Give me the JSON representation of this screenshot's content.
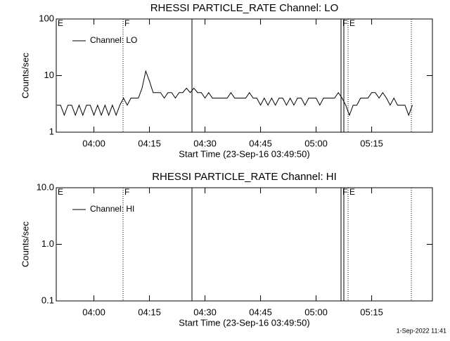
{
  "chart_data": [
    {
      "type": "line",
      "title": "RHESSI PARTICLE_RATE Channel: LO",
      "xlabel": "Start Time (23-Sep-16 03:49:50)",
      "ylabel": "Counts/sec",
      "log_y": true,
      "xlim": [
        229.833,
        331.41
      ],
      "ylim": [
        1,
        100
      ],
      "yticks": [
        1,
        10,
        100
      ],
      "xticks": [
        {
          "value": 240,
          "label": "04:00"
        },
        {
          "value": 255,
          "label": "04:15"
        },
        {
          "value": 270,
          "label": "04:30"
        },
        {
          "value": 285,
          "label": "04:45"
        },
        {
          "value": 300,
          "label": "05:00"
        },
        {
          "value": 315,
          "label": "05:15"
        }
      ],
      "annotations": [
        {
          "x": 229.833,
          "style": "solid",
          "label": "E"
        },
        {
          "x": 247.87,
          "style": "dotted",
          "label": "F"
        },
        {
          "x": 266.48,
          "style": "solid"
        },
        {
          "x": 306.73,
          "style": "solid",
          "label": "F"
        },
        {
          "x": 307.49,
          "style": "solid"
        },
        {
          "x": 308.63,
          "style": "dotted",
          "label": "E"
        },
        {
          "x": 325.72,
          "style": "dotted"
        }
      ],
      "series": [
        {
          "name": "Channel: LO",
          "color": "#000000",
          "x": [
            230,
            231,
            232,
            233,
            234,
            235,
            236,
            237,
            238,
            239,
            240,
            241,
            242,
            243,
            244,
            245,
            246,
            247,
            248,
            249,
            250,
            251,
            252,
            253,
            254,
            255,
            256,
            257,
            258,
            259,
            260,
            261,
            262,
            263,
            264,
            265,
            266,
            267,
            268,
            269,
            270,
            271,
            272,
            273,
            274,
            275,
            276,
            277,
            278,
            279,
            280,
            281,
            282,
            283,
            284,
            285,
            286,
            287,
            288,
            289,
            290,
            291,
            292,
            293,
            294,
            295,
            296,
            297,
            298,
            299,
            300,
            301,
            302,
            303,
            304,
            305,
            306,
            307,
            308,
            309,
            310,
            311,
            312,
            313,
            314,
            315,
            316,
            317,
            318,
            319,
            320,
            321,
            322,
            323,
            324,
            325,
            326
          ],
          "values": [
            3,
            3,
            2,
            3,
            3,
            2,
            3,
            2,
            3,
            3,
            2,
            3,
            2,
            3,
            2,
            3,
            2,
            3,
            4,
            3,
            4,
            4,
            4,
            6,
            12,
            8,
            5,
            5,
            5,
            4,
            5,
            5,
            4,
            5,
            5,
            6,
            5,
            6,
            5,
            5,
            4,
            5,
            4,
            4,
            4,
            4,
            4,
            5,
            4,
            4,
            4,
            4,
            5,
            4,
            4,
            3,
            4,
            3,
            4,
            3,
            4,
            4,
            3,
            4,
            3,
            4,
            4,
            3,
            4,
            4,
            4,
            3,
            4,
            4,
            4,
            4,
            5,
            4,
            3,
            2,
            3,
            3,
            4,
            4,
            4,
            5,
            5,
            4,
            5,
            4,
            3,
            4,
            3,
            3,
            3,
            2,
            3
          ]
        }
      ]
    },
    {
      "type": "line",
      "title": "RHESSI PARTICLE_RATE Channel: HI",
      "xlabel": "Start Time (23-Sep-16 03:49:50)",
      "ylabel": "Counts/sec",
      "log_y": true,
      "xlim": [
        229.833,
        331.41
      ],
      "ylim": [
        0.1,
        10
      ],
      "yticks": [
        0.1,
        {
          "value": 1,
          "label": "1.0"
        },
        {
          "value": 10,
          "label": "10.0"
        }
      ],
      "xticks": [
        {
          "value": 240,
          "label": "04:00"
        },
        {
          "value": 255,
          "label": "04:15"
        },
        {
          "value": 270,
          "label": "04:30"
        },
        {
          "value": 285,
          "label": "04:45"
        },
        {
          "value": 300,
          "label": "05:00"
        },
        {
          "value": 315,
          "label": "05:15"
        }
      ],
      "annotations": [
        {
          "x": 229.833,
          "style": "solid",
          "label": "E"
        },
        {
          "x": 247.87,
          "style": "dotted",
          "label": "F"
        },
        {
          "x": 266.48,
          "style": "solid"
        },
        {
          "x": 306.73,
          "style": "solid",
          "label": "F"
        },
        {
          "x": 307.49,
          "style": "solid"
        },
        {
          "x": 308.63,
          "style": "dotted",
          "label": "E"
        },
        {
          "x": 325.72,
          "style": "dotted"
        }
      ],
      "series": [
        {
          "name": "Channel: HI",
          "color": "#000000",
          "x": [],
          "values": []
        }
      ]
    }
  ],
  "footer": "1-Sep-2022 11:41"
}
